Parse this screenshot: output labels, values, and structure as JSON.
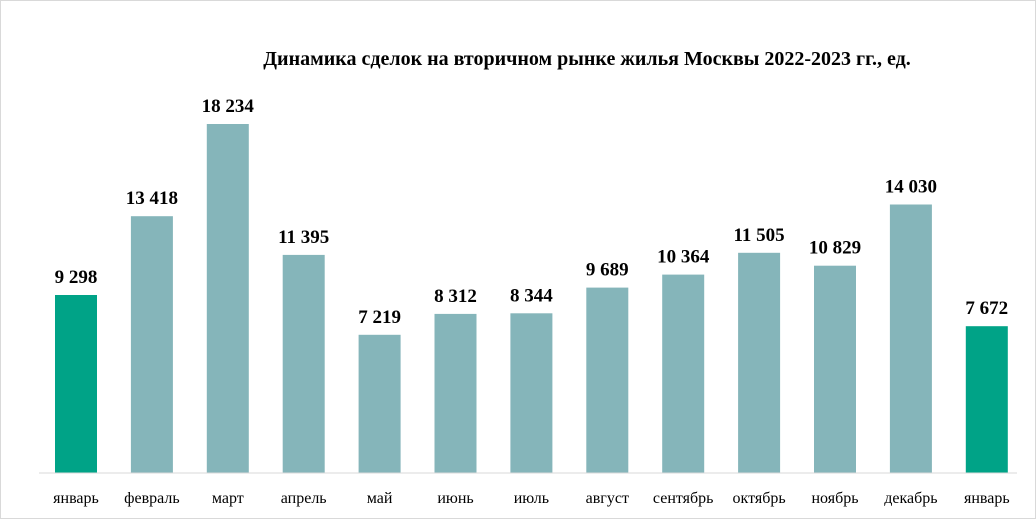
{
  "chart_data": {
    "type": "bar",
    "title": "Динамика сделок на вторичном рынке жилья Москвы 2022-2023 гг., ед.",
    "categories": [
      "январь",
      "февраль",
      "март",
      "апрель",
      "май",
      "июнь",
      "июль",
      "август",
      "сентябрь",
      "октябрь",
      "ноябрь",
      "декабрь",
      "январь"
    ],
    "values": [
      9298,
      13418,
      18234,
      11395,
      7219,
      8312,
      8344,
      9689,
      10364,
      11505,
      10829,
      14030,
      7672
    ],
    "value_labels": [
      "9 298",
      "13 418",
      "18 234",
      "11 395",
      "7 219",
      "8 312",
      "8 344",
      "9 689",
      "10 364",
      "11 505",
      "10 829",
      "14 030",
      "7 672"
    ],
    "bar_colors": [
      "#00a387",
      "#85b5ba",
      "#85b5ba",
      "#85b5ba",
      "#85b5ba",
      "#85b5ba",
      "#85b5ba",
      "#85b5ba",
      "#85b5ba",
      "#85b5ba",
      "#85b5ba",
      "#85b5ba",
      "#00a387"
    ],
    "ylim": [
      0,
      18234
    ],
    "grid": false,
    "legend": "none"
  }
}
